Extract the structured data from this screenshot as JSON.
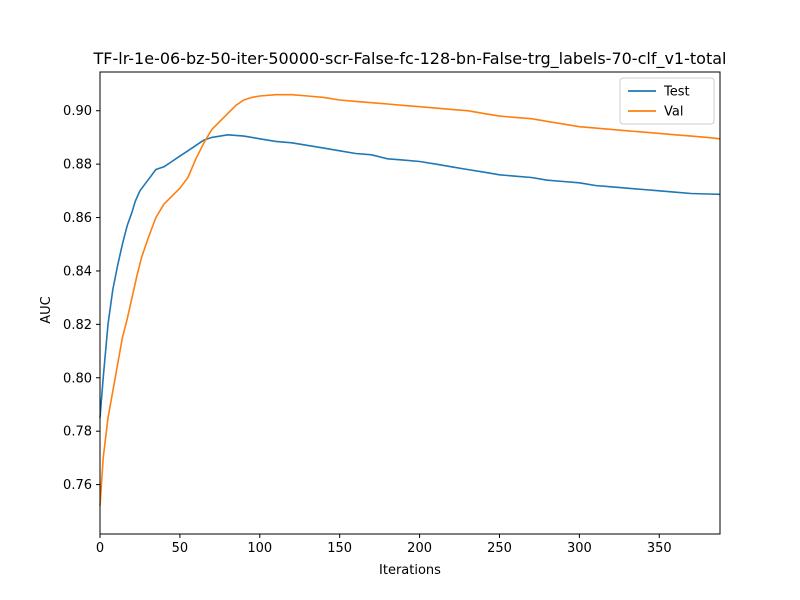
{
  "chart_data": {
    "type": "line",
    "title": "TF-lr-1e-06-bz-50-iter-50000-scr-False-fc-128-bn-False-trg_labels-70-clf_v1-total",
    "xlabel": "Iterations",
    "ylabel": "AUC",
    "xlim": [
      0,
      388
    ],
    "ylim": [
      0.7415,
      0.9145
    ],
    "xticks": [
      0,
      50,
      100,
      150,
      200,
      250,
      300,
      350
    ],
    "yticks": [
      0.76,
      0.78,
      0.8,
      0.82,
      0.84,
      0.86,
      0.88,
      0.9
    ],
    "ytick_labels": [
      "0.76",
      "0.78",
      "0.80",
      "0.82",
      "0.84",
      "0.86",
      "0.88",
      "0.90"
    ],
    "grid": false,
    "legend_position": "top-right",
    "series": [
      {
        "name": "Test",
        "color": "#1f77b4",
        "points": [
          [
            0,
            0.785
          ],
          [
            2,
            0.8
          ],
          [
            5,
            0.82
          ],
          [
            8,
            0.833
          ],
          [
            11,
            0.842
          ],
          [
            14,
            0.85
          ],
          [
            17,
            0.857
          ],
          [
            20,
            0.862
          ],
          [
            22,
            0.866
          ],
          [
            25,
            0.87
          ],
          [
            30,
            0.874
          ],
          [
            35,
            0.878
          ],
          [
            40,
            0.879
          ],
          [
            45,
            0.881
          ],
          [
            50,
            0.883
          ],
          [
            55,
            0.885
          ],
          [
            60,
            0.887
          ],
          [
            65,
            0.889
          ],
          [
            70,
            0.89
          ],
          [
            80,
            0.891
          ],
          [
            90,
            0.8905
          ],
          [
            100,
            0.8895
          ],
          [
            110,
            0.8885
          ],
          [
            120,
            0.888
          ],
          [
            130,
            0.887
          ],
          [
            140,
            0.886
          ],
          [
            150,
            0.885
          ],
          [
            160,
            0.884
          ],
          [
            170,
            0.8835
          ],
          [
            180,
            0.882
          ],
          [
            190,
            0.8815
          ],
          [
            200,
            0.881
          ],
          [
            210,
            0.88
          ],
          [
            220,
            0.879
          ],
          [
            230,
            0.878
          ],
          [
            240,
            0.877
          ],
          [
            250,
            0.876
          ],
          [
            260,
            0.8755
          ],
          [
            270,
            0.875
          ],
          [
            280,
            0.874
          ],
          [
            290,
            0.8735
          ],
          [
            300,
            0.873
          ],
          [
            310,
            0.872
          ],
          [
            320,
            0.8715
          ],
          [
            330,
            0.871
          ],
          [
            340,
            0.8705
          ],
          [
            350,
            0.87
          ],
          [
            360,
            0.8695
          ],
          [
            370,
            0.869
          ],
          [
            380,
            0.8688
          ],
          [
            388,
            0.8687
          ]
        ]
      },
      {
        "name": "Val",
        "color": "#ff7f0e",
        "points": [
          [
            0,
            0.752
          ],
          [
            2,
            0.77
          ],
          [
            5,
            0.785
          ],
          [
            8,
            0.795
          ],
          [
            11,
            0.805
          ],
          [
            14,
            0.815
          ],
          [
            17,
            0.822
          ],
          [
            20,
            0.83
          ],
          [
            23,
            0.838
          ],
          [
            26,
            0.845
          ],
          [
            30,
            0.852
          ],
          [
            35,
            0.86
          ],
          [
            40,
            0.865
          ],
          [
            45,
            0.868
          ],
          [
            50,
            0.871
          ],
          [
            55,
            0.875
          ],
          [
            60,
            0.882
          ],
          [
            65,
            0.888
          ],
          [
            70,
            0.893
          ],
          [
            75,
            0.896
          ],
          [
            80,
            0.899
          ],
          [
            85,
            0.902
          ],
          [
            90,
            0.904
          ],
          [
            95,
            0.905
          ],
          [
            100,
            0.9055
          ],
          [
            110,
            0.906
          ],
          [
            120,
            0.906
          ],
          [
            130,
            0.9055
          ],
          [
            140,
            0.905
          ],
          [
            150,
            0.904
          ],
          [
            160,
            0.9035
          ],
          [
            170,
            0.903
          ],
          [
            180,
            0.9025
          ],
          [
            190,
            0.902
          ],
          [
            200,
            0.9015
          ],
          [
            210,
            0.901
          ],
          [
            220,
            0.9005
          ],
          [
            230,
            0.9
          ],
          [
            240,
            0.899
          ],
          [
            250,
            0.898
          ],
          [
            260,
            0.8975
          ],
          [
            270,
            0.897
          ],
          [
            280,
            0.896
          ],
          [
            290,
            0.895
          ],
          [
            300,
            0.894
          ],
          [
            310,
            0.8935
          ],
          [
            320,
            0.893
          ],
          [
            330,
            0.8925
          ],
          [
            340,
            0.892
          ],
          [
            350,
            0.8915
          ],
          [
            360,
            0.891
          ],
          [
            370,
            0.8905
          ],
          [
            380,
            0.89
          ],
          [
            388,
            0.8895
          ]
        ]
      }
    ]
  }
}
